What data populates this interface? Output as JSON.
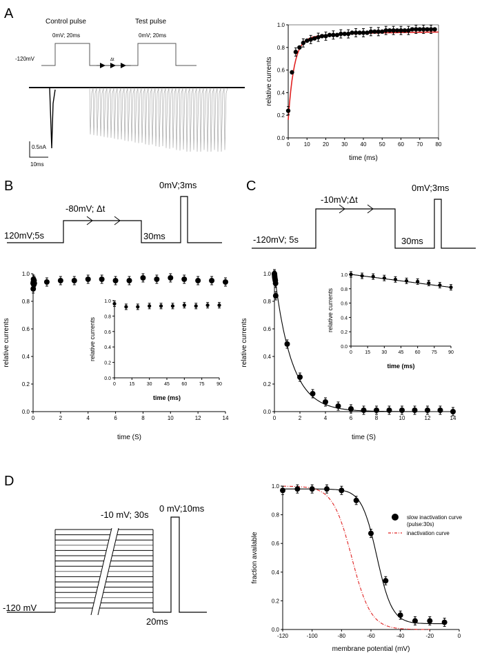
{
  "panels": {
    "A": {
      "letter": "A",
      "protocol": {
        "control_label": "Control pulse",
        "control_value": "0mV; 20ms",
        "test_label": "Test pulse",
        "test_value": "0mV; 20ms",
        "holding": "-120mV",
        "delta": "Δt"
      },
      "scalebar": {
        "current": "0.5nA",
        "time": "10ms"
      }
    },
    "B": {
      "letter": "B",
      "protocol": {
        "step1": "120mV;5s",
        "step2": "-80mV; Δt",
        "step3": "30ms",
        "step4": "0mV;3ms"
      }
    },
    "C": {
      "letter": "C",
      "protocol": {
        "step1": "-120mV; 5s",
        "step2": "-10mV;Δt",
        "step3": "30ms",
        "step4": "0mV;3ms"
      }
    },
    "D": {
      "letter": "D",
      "protocol": {
        "holding": "-120 mV",
        "cond": "-10 mV; 30s",
        "test": "0 mV;10ms",
        "gap": "20ms"
      },
      "legend": {
        "s1_line1": "slow inactivation curve",
        "s1_line2": "(pulse:30s)",
        "s2": "inactivation curve"
      }
    }
  },
  "chart_data": [
    {
      "id": "A-recovery",
      "type": "scatter",
      "xlabel": "time (ms)",
      "ylabel": "relative currents",
      "xlim": [
        0,
        80
      ],
      "ylim": [
        0,
        1.0
      ],
      "xticks": [
        "0",
        "10",
        "20",
        "30",
        "40",
        "50",
        "60",
        "70",
        "80"
      ],
      "yticks": [
        "0.0",
        "0.2",
        "0.4",
        "0.6",
        "0.8",
        "1.0"
      ],
      "fit_color": "#e02020",
      "series": [
        {
          "x": [
            0,
            2,
            4,
            6,
            8,
            10,
            12,
            14,
            16,
            18,
            20,
            22,
            24,
            26,
            28,
            30,
            32,
            34,
            36,
            38,
            40,
            42,
            44,
            46,
            48,
            50,
            52,
            54,
            56,
            58,
            60,
            62,
            64,
            66,
            68,
            70,
            72,
            74,
            76,
            78
          ],
          "y": [
            0.24,
            0.58,
            0.76,
            0.8,
            0.84,
            0.86,
            0.87,
            0.88,
            0.89,
            0.9,
            0.9,
            0.91,
            0.91,
            0.91,
            0.92,
            0.92,
            0.92,
            0.93,
            0.93,
            0.93,
            0.93,
            0.93,
            0.94,
            0.94,
            0.94,
            0.94,
            0.95,
            0.95,
            0.95,
            0.95,
            0.95,
            0.95,
            0.95,
            0.96,
            0.96,
            0.96,
            0.96,
            0.96,
            0.96,
            0.96
          ]
        }
      ]
    },
    {
      "id": "B-main",
      "type": "scatter",
      "xlabel": "time (S)",
      "ylabel": "relative currents",
      "xlim": [
        0,
        14
      ],
      "ylim": [
        0,
        1.0
      ],
      "xticks": [
        "0",
        "2",
        "4",
        "6",
        "8",
        "10",
        "12",
        "14"
      ],
      "yticks": [
        "0.0",
        "0.2",
        "0.4",
        "0.6",
        "0.8",
        "1.0"
      ],
      "series": [
        {
          "x": [
            0,
            0.01,
            0.02,
            0.03,
            0.05,
            0.07,
            0.09,
            1,
            2,
            3,
            4,
            5,
            6,
            7,
            8,
            9,
            10,
            11,
            12,
            13,
            14
          ],
          "y": [
            0.93,
            0.89,
            0.94,
            0.96,
            0.92,
            0.95,
            0.93,
            0.94,
            0.95,
            0.95,
            0.96,
            0.96,
            0.95,
            0.95,
            0.97,
            0.96,
            0.97,
            0.96,
            0.95,
            0.95,
            0.94
          ]
        }
      ]
    },
    {
      "id": "B-inset",
      "type": "scatter",
      "xlabel": "time (ms)",
      "ylabel": "relative currents",
      "xlim": [
        0,
        90
      ],
      "ylim": [
        0,
        1.0
      ],
      "xticks": [
        "0",
        "15",
        "30",
        "45",
        "60",
        "75",
        "90"
      ],
      "yticks": [
        "0.0",
        "0.2",
        "0.4",
        "0.6",
        "0.8",
        "1.0"
      ],
      "series": [
        {
          "x": [
            0,
            10,
            20,
            30,
            40,
            50,
            60,
            70,
            80,
            90
          ],
          "y": [
            0.96,
            0.92,
            0.92,
            0.93,
            0.93,
            0.93,
            0.94,
            0.93,
            0.94,
            0.94
          ]
        }
      ]
    },
    {
      "id": "C-main",
      "type": "scatter",
      "xlabel": "time (S)",
      "ylabel": "relative currents",
      "xlim": [
        0,
        14
      ],
      "ylim": [
        0,
        1.0
      ],
      "xticks": [
        "0",
        "2",
        "4",
        "6",
        "8",
        "10",
        "12",
        "14"
      ],
      "yticks": [
        "0.0",
        "0.2",
        "0.4",
        "0.6",
        "0.8",
        "1.0"
      ],
      "series": [
        {
          "x": [
            0,
            0.01,
            0.02,
            0.03,
            0.05,
            0.07,
            0.09,
            0.1,
            1,
            2,
            3,
            4,
            5,
            6,
            7,
            8,
            9,
            10,
            11,
            12,
            13,
            14
          ],
          "y": [
            1.0,
            0.99,
            0.98,
            0.97,
            0.96,
            0.95,
            0.93,
            0.84,
            0.49,
            0.25,
            0.13,
            0.07,
            0.04,
            0.02,
            0.01,
            0.01,
            0.01,
            0.01,
            0.01,
            0.01,
            0.01,
            0.0
          ]
        }
      ]
    },
    {
      "id": "C-inset",
      "type": "scatter",
      "xlabel": "time (ms)",
      "ylabel": "relative currents",
      "xlim": [
        0,
        90
      ],
      "ylim": [
        0,
        1.0
      ],
      "xticks": [
        "0",
        "15",
        "30",
        "45",
        "60",
        "75",
        "90"
      ],
      "yticks": [
        "0.0",
        "0.2",
        "0.4",
        "0.6",
        "0.8",
        "1.0"
      ],
      "series": [
        {
          "x": [
            0,
            10,
            20,
            30,
            40,
            50,
            60,
            70,
            80,
            90
          ],
          "y": [
            1.0,
            0.98,
            0.97,
            0.95,
            0.93,
            0.91,
            0.9,
            0.88,
            0.85,
            0.82
          ]
        }
      ]
    },
    {
      "id": "D-availability",
      "type": "scatter",
      "xlabel": "membrane potential (mV)",
      "ylabel": "fraction available",
      "xlim": [
        -120,
        0
      ],
      "ylim": [
        0,
        1.0
      ],
      "xticks": [
        "-120",
        "-100",
        "-80",
        "-60",
        "-40",
        "-20",
        "0"
      ],
      "yticks": [
        "0.0",
        "0.2",
        "0.4",
        "0.6",
        "0.8",
        "1.0"
      ],
      "legend_position": "top-right",
      "dash_color": "#e02020",
      "series": [
        {
          "name": "slow inactivation curve (pulse:30s)",
          "x": [
            -120,
            -110,
            -100,
            -90,
            -80,
            -70,
            -60,
            -50,
            -40,
            -30,
            -20,
            -10
          ],
          "y": [
            0.97,
            0.98,
            0.98,
            0.98,
            0.97,
            0.9,
            0.67,
            0.34,
            0.1,
            0.06,
            0.06,
            0.05
          ]
        }
      ]
    }
  ]
}
